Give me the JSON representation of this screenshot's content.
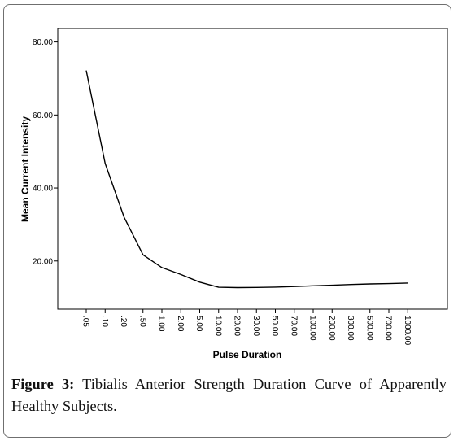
{
  "chart_data": {
    "type": "line",
    "title": "",
    "xlabel": "Pulse Duration",
    "ylabel": "Mean Current Intensity",
    "categories": [
      ".05",
      ".10",
      ".20",
      ".50",
      "1.00",
      "2.00",
      "5.00",
      "10.00",
      "20.00",
      "30.00",
      "50.00",
      "70.00",
      "100.00",
      "200.00",
      "300.00",
      "500.00",
      "700.00",
      "1000.00"
    ],
    "values": [
      72.2,
      46.7,
      32.0,
      21.7,
      18.2,
      16.3,
      14.2,
      12.8,
      12.7,
      12.75,
      12.85,
      13.0,
      13.2,
      13.35,
      13.55,
      13.7,
      13.8,
      13.95
    ],
    "y_ticks": [
      "20.00",
      "40.00",
      "60.00",
      "80.00"
    ],
    "y_tick_values": [
      20,
      40,
      60,
      80
    ],
    "ylim": [
      6.8,
      83.7
    ],
    "grid": false,
    "legend": "none",
    "line_color": "#000000"
  },
  "caption": {
    "label": "Figure 3:",
    "text": " Tibialis Anterior Strength Duration Curve of Apparently Healthy Subjects."
  }
}
